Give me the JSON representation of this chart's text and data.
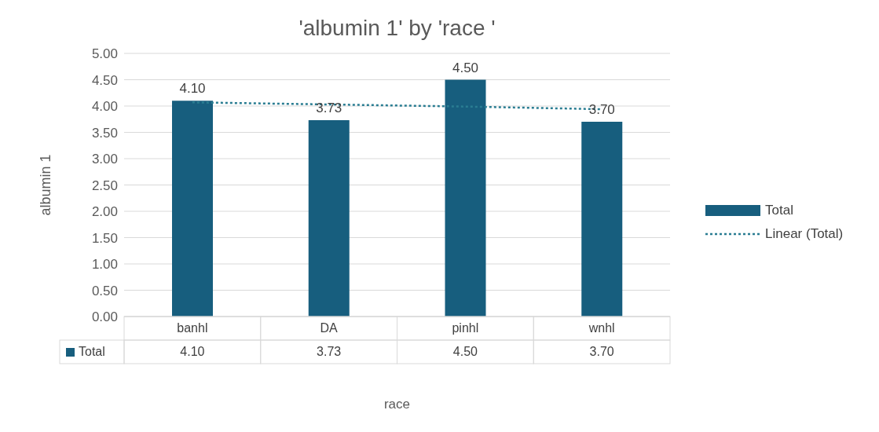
{
  "chart_data": {
    "type": "bar",
    "title": "'albumin  1' by 'race '",
    "xlabel": "race",
    "ylabel": "albumin  1",
    "categories": [
      "banhl",
      "DA",
      "pinhl",
      "wnhl"
    ],
    "series": [
      {
        "name": "Total",
        "color": "#175e7e",
        "values": [
          4.1,
          3.73,
          4.5,
          3.7
        ],
        "value_labels": [
          "4.10",
          "3.73",
          "4.50",
          "3.70"
        ]
      },
      {
        "name": "Linear (Total)",
        "type": "line",
        "color": "#2a7d92",
        "values": [
          4.07,
          4.03,
          3.99,
          3.94
        ],
        "line_style": "dotted",
        "marker": "none"
      }
    ],
    "ylim": [
      0,
      5
    ],
    "yticks": [
      {
        "value": 0,
        "label": "0.00"
      },
      {
        "value": 0.5,
        "label": "0.50"
      },
      {
        "value": 1,
        "label": "1.00"
      },
      {
        "value": 1.5,
        "label": "1.50"
      },
      {
        "value": 2,
        "label": "2.00"
      },
      {
        "value": 2.5,
        "label": "2.50"
      },
      {
        "value": 3,
        "label": "3.00"
      },
      {
        "value": 3.5,
        "label": "3.50"
      },
      {
        "value": 4,
        "label": "4.00"
      },
      {
        "value": 4.5,
        "label": "4.50"
      },
      {
        "value": 5,
        "label": "5.00"
      }
    ],
    "grid": "y",
    "legend": "right"
  }
}
